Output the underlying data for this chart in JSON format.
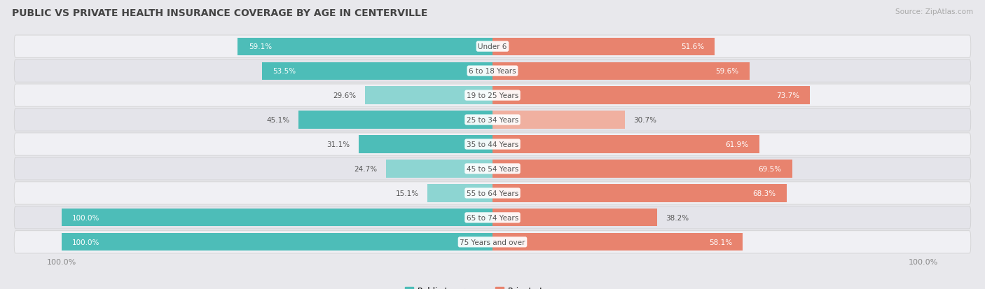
{
  "title": "PUBLIC VS PRIVATE HEALTH INSURANCE COVERAGE BY AGE IN CENTERVILLE",
  "source": "Source: ZipAtlas.com",
  "categories": [
    "Under 6",
    "6 to 18 Years",
    "19 to 25 Years",
    "25 to 34 Years",
    "35 to 44 Years",
    "45 to 54 Years",
    "55 to 64 Years",
    "65 to 74 Years",
    "75 Years and over"
  ],
  "public": [
    59.1,
    53.5,
    29.6,
    45.1,
    31.1,
    24.7,
    15.1,
    100.0,
    100.0
  ],
  "private": [
    51.6,
    59.6,
    73.7,
    30.7,
    61.9,
    69.5,
    68.3,
    38.2,
    58.1
  ],
  "public_color": "#4dbdb8",
  "private_color": "#e8836e",
  "public_color_low": "#8dd5d2",
  "private_color_low": "#f0b0a0",
  "bg_color": "#e8e8ec",
  "row_color_odd": "#f0f0f4",
  "row_color_even": "#e4e4ea",
  "max_value": 100.0,
  "label_color_outside": "#555555",
  "label_color_inside": "#ffffff",
  "center_label_color": "#555555",
  "legend_public": "Public Insurance",
  "legend_private": "Private Insurance",
  "threshold_inside": 50.0
}
